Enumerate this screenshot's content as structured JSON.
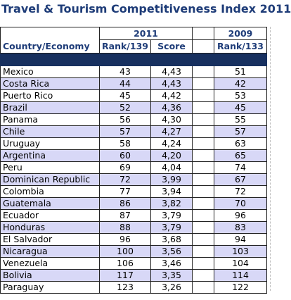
{
  "title": "Travel & Tourism Competitiveness Index 2011",
  "header": {
    "year_2011": "2011",
    "year_2009": "2009",
    "country_label": "Country/Economy",
    "rank_2011_label": "Rank/139",
    "score_label": "Score",
    "rank_2009_label": "Rank/133"
  },
  "rows": [
    {
      "country": "Mexico",
      "rank2011": "43",
      "score": "4,43",
      "rank2009": "51"
    },
    {
      "country": "Costa Rica",
      "rank2011": "44",
      "score": "4,43",
      "rank2009": "42"
    },
    {
      "country": "Puerto Rico",
      "rank2011": "45",
      "score": "4,42",
      "rank2009": "53"
    },
    {
      "country": "Brazil",
      "rank2011": "52",
      "score": "4,36",
      "rank2009": "45"
    },
    {
      "country": "Panama",
      "rank2011": "56",
      "score": "4,30",
      "rank2009": "55"
    },
    {
      "country": "Chile",
      "rank2011": "57",
      "score": "4,27",
      "rank2009": "57"
    },
    {
      "country": "Uruguay",
      "rank2011": "58",
      "score": "4,24",
      "rank2009": "63"
    },
    {
      "country": "Argentina",
      "rank2011": "60",
      "score": "4,20",
      "rank2009": "65"
    },
    {
      "country": "Peru",
      "rank2011": "69",
      "score": "4,04",
      "rank2009": "74"
    },
    {
      "country": "Dominican Republic",
      "rank2011": "72",
      "score": "3,99",
      "rank2009": "67"
    },
    {
      "country": "Colombia",
      "rank2011": "77",
      "score": "3,94",
      "rank2009": "72"
    },
    {
      "country": "Guatemala",
      "rank2011": "86",
      "score": "3,82",
      "rank2009": "70"
    },
    {
      "country": "Ecuador",
      "rank2011": "87",
      "score": "3,79",
      "rank2009": "96"
    },
    {
      "country": "Honduras",
      "rank2011": "88",
      "score": "3,79",
      "rank2009": "83"
    },
    {
      "country": "El Salvador",
      "rank2011": "96",
      "score": "3,68",
      "rank2009": "94"
    },
    {
      "country": "Nicaragua",
      "rank2011": "100",
      "score": "3,56",
      "rank2009": "103"
    },
    {
      "country": "Venezuela",
      "rank2011": "106",
      "score": "3,46",
      "rank2009": "104"
    },
    {
      "country": "Bolivia",
      "rank2011": "117",
      "score": "3,35",
      "rank2009": "114"
    },
    {
      "country": "Paraguay",
      "rank2011": "123",
      "score": "3,26",
      "rank2009": "122"
    }
  ],
  "colors": {
    "header_text": "#1e3c78",
    "separator_band": "#17305f",
    "shaded_row": "#d8d8f7"
  }
}
